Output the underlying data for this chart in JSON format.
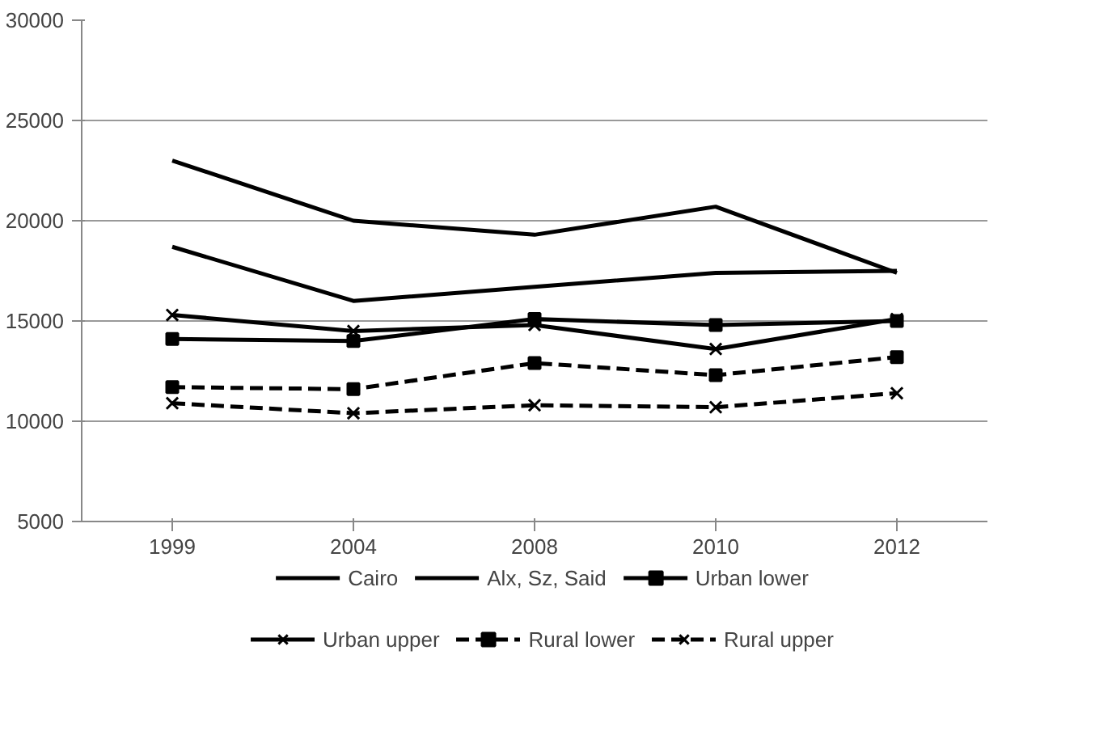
{
  "chart_data": {
    "type": "line",
    "categories": [
      "1999",
      "2004",
      "2008",
      "2010",
      "2012"
    ],
    "ylim": [
      5000,
      30000
    ],
    "yticks": [
      5000,
      10000,
      15000,
      20000,
      25000,
      30000
    ],
    "grid": "y",
    "legend": "bottom",
    "series": [
      {
        "name": "Cairo",
        "color": "#000000",
        "marker": "none",
        "line_style": "solid",
        "values": [
          23000,
          20000,
          19300,
          20700,
          17400
        ]
      },
      {
        "name": "Alx, Sz, Said",
        "color": "#000000",
        "marker": "none",
        "line_style": "solid",
        "values": [
          18700,
          16000,
          16700,
          17400,
          17500
        ]
      },
      {
        "name": "Urban lower",
        "color": "#000000",
        "marker": "square",
        "line_style": "solid",
        "values": [
          14100,
          14000,
          15100,
          14800,
          15000
        ]
      },
      {
        "name": "Urban upper",
        "color": "#000000",
        "marker": "cross",
        "line_style": "solid",
        "values": [
          15300,
          14500,
          14800,
          13600,
          15100
        ]
      },
      {
        "name": "Rural lower",
        "color": "#000000",
        "marker": "square",
        "line_style": "dashed",
        "values": [
          11700,
          11600,
          12900,
          12300,
          13200
        ]
      },
      {
        "name": "Rural upper",
        "color": "#000000",
        "marker": "cross",
        "line_style": "dashed",
        "values": [
          10900,
          10400,
          10800,
          10700,
          11400
        ]
      }
    ]
  }
}
